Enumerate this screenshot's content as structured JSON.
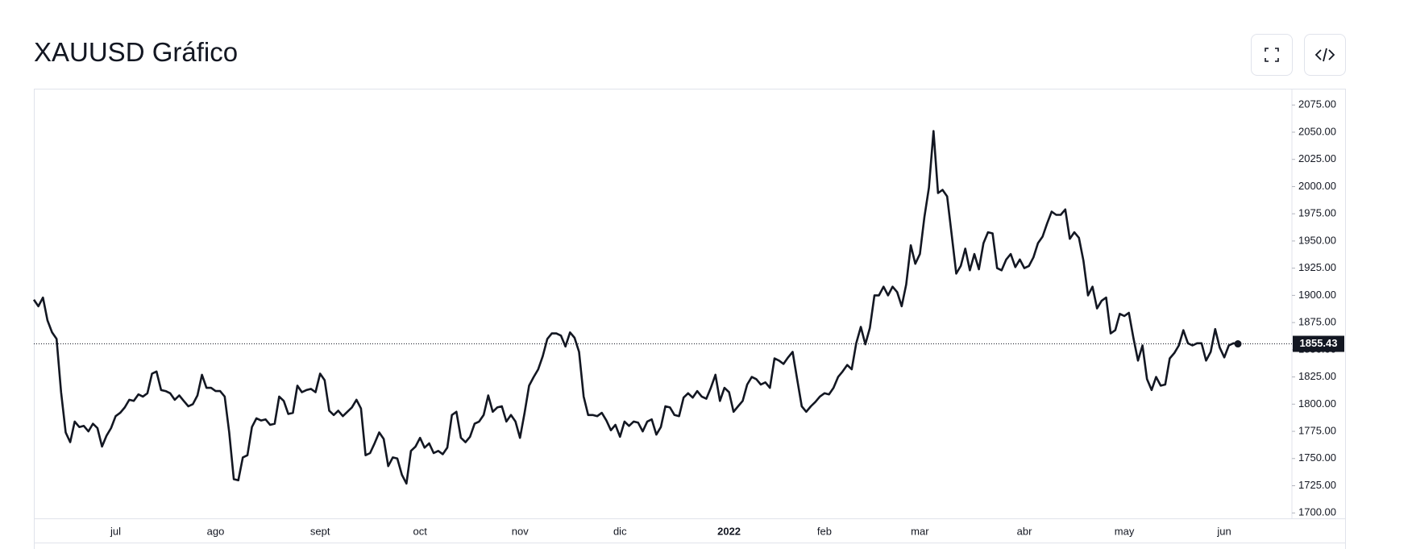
{
  "chart_data": {
    "type": "line",
    "title": "XAUUSD Gráfico",
    "color": "#131722",
    "categories": [
      null,
      null,
      null,
      null,
      null,
      null,
      null,
      null,
      null,
      null,
      null,
      null,
      null,
      null,
      null,
      null,
      null,
      null,
      "jul",
      null,
      null,
      null,
      null,
      null,
      null,
      null,
      null,
      null,
      null,
      null,
      null,
      null,
      null,
      null,
      null,
      null,
      null,
      null,
      null,
      null,
      "ago",
      null,
      null,
      null,
      null,
      null,
      null,
      null,
      null,
      null,
      null,
      null,
      null,
      null,
      null,
      null,
      null,
      null,
      null,
      null,
      null,
      null,
      null,
      "sept",
      null,
      null,
      null,
      null,
      null,
      null,
      null,
      null,
      null,
      null,
      null,
      null,
      null,
      null,
      null,
      null,
      null,
      null,
      null,
      null,
      null,
      "oct",
      null,
      null,
      null,
      null,
      null,
      null,
      null,
      null,
      null,
      null,
      null,
      null,
      null,
      null,
      null,
      null,
      null,
      null,
      null,
      null,
      null,
      "nov",
      null,
      null,
      null,
      null,
      null,
      null,
      null,
      null,
      null,
      null,
      null,
      null,
      null,
      null,
      null,
      null,
      null,
      null,
      null,
      null,
      null,
      "dic",
      null,
      null,
      null,
      null,
      null,
      null,
      null,
      null,
      null,
      null,
      null,
      null,
      null,
      null,
      null,
      null,
      null,
      null,
      null,
      null,
      null,
      null,
      null,
      "2022",
      null,
      null,
      null,
      null,
      null,
      null,
      null,
      null,
      null,
      null,
      null,
      null,
      null,
      null,
      null,
      null,
      null,
      null,
      null,
      null,
      "feb",
      null,
      null,
      null,
      null,
      null,
      null,
      null,
      null,
      null,
      null,
      null,
      null,
      null,
      null,
      null,
      null,
      null,
      null,
      null,
      null,
      "mar",
      null,
      null,
      null,
      null,
      null,
      null,
      null,
      null,
      null,
      null,
      null,
      null,
      null,
      null,
      null,
      null,
      null,
      null,
      null,
      null,
      null,
      null,
      "abr",
      null,
      null,
      null,
      null,
      null,
      null,
      null,
      null,
      null,
      null,
      null,
      null,
      null,
      null,
      null,
      null,
      null,
      null,
      null,
      null,
      null,
      "may",
      null,
      null,
      null,
      null,
      null,
      null,
      null,
      null,
      null,
      null,
      null,
      null,
      null,
      null,
      null,
      null,
      null,
      null,
      null,
      null,
      null,
      "jun",
      null,
      null,
      null
    ],
    "values": [
      1896,
      1890,
      1898,
      1877,
      1866,
      1860,
      1811,
      1774,
      1765,
      1784,
      1779,
      1780,
      1775,
      1782,
      1778,
      1761,
      1771,
      1778,
      1789,
      1792,
      1797,
      1804,
      1803,
      1809,
      1807,
      1810,
      1828,
      1830,
      1813,
      1812,
      1810,
      1804,
      1808,
      1803,
      1798,
      1800,
      1808,
      1827,
      1815,
      1815,
      1812,
      1812,
      1807,
      1774,
      1731,
      1730,
      1751,
      1753,
      1779,
      1787,
      1785,
      1786,
      1781,
      1782,
      1807,
      1803,
      1791,
      1792,
      1817,
      1811,
      1813,
      1814,
      1811,
      1828,
      1822,
      1794,
      1790,
      1794,
      1789,
      1793,
      1797,
      1804,
      1796,
      1753,
      1755,
      1764,
      1774,
      1768,
      1743,
      1751,
      1750,
      1735,
      1727,
      1757,
      1761,
      1769,
      1760,
      1764,
      1755,
      1757,
      1754,
      1760,
      1790,
      1793,
      1769,
      1765,
      1770,
      1782,
      1784,
      1790,
      1808,
      1793,
      1797,
      1798,
      1784,
      1790,
      1784,
      1769,
      1792,
      1817,
      1825,
      1832,
      1844,
      1860,
      1865,
      1865,
      1863,
      1853,
      1866,
      1861,
      1848,
      1807,
      1790,
      1790,
      1789,
      1792,
      1785,
      1776,
      1781,
      1770,
      1784,
      1780,
      1784,
      1783,
      1775,
      1784,
      1786,
      1772,
      1779,
      1798,
      1797,
      1790,
      1789,
      1806,
      1810,
      1806,
      1812,
      1807,
      1805,
      1815,
      1827,
      1803,
      1815,
      1811,
      1793,
      1798,
      1803,
      1818,
      1825,
      1823,
      1818,
      1820,
      1815,
      1842,
      1840,
      1837,
      1843,
      1848,
      1823,
      1798,
      1793,
      1798,
      1802,
      1807,
      1810,
      1809,
      1815,
      1825,
      1830,
      1836,
      1832,
      1856,
      1871,
      1855,
      1870,
      1900,
      1900,
      1908,
      1900,
      1908,
      1903,
      1890,
      1910,
      1946,
      1929,
      1938,
      1972,
      1999,
      2051,
      1994,
      1997,
      1991,
      1956,
      1920,
      1927,
      1943,
      1923,
      1938,
      1924,
      1948,
      1958,
      1957,
      1925,
      1923,
      1933,
      1938,
      1926,
      1933,
      1925,
      1927,
      1935,
      1948,
      1954,
      1966,
      1977,
      1974,
      1974,
      1979,
      1952,
      1958,
      1953,
      1932,
      1900,
      1908,
      1888,
      1895,
      1898,
      1865,
      1868,
      1883,
      1881,
      1884,
      1861,
      1840,
      1854,
      1823,
      1813,
      1825,
      1817,
      1818,
      1842,
      1847,
      1854,
      1868,
      1856,
      1854,
      1856,
      1856,
      1840,
      1848,
      1869,
      1852,
      1843,
      1854,
      1856,
      1855.43
    ],
    "ylim": [
      1695,
      2090
    ],
    "yticks": [
      {
        "value": 1700,
        "label": "1700.00"
      },
      {
        "value": 1725,
        "label": "1725.00"
      },
      {
        "value": 1750,
        "label": "1750.00"
      },
      {
        "value": 1775,
        "label": "1775.00"
      },
      {
        "value": 1800,
        "label": "1800.00"
      },
      {
        "value": 1825,
        "label": "1825.00"
      },
      {
        "value": 1850,
        "label": "1850.00"
      },
      {
        "value": 1875,
        "label": "1875.00"
      },
      {
        "value": 1900,
        "label": "1900.00"
      },
      {
        "value": 1925,
        "label": "1925.00"
      },
      {
        "value": 1950,
        "label": "1950.00"
      },
      {
        "value": 1975,
        "label": "1975.00"
      },
      {
        "value": 2000,
        "label": "2000.00"
      },
      {
        "value": 2025,
        "label": "2025.00"
      },
      {
        "value": 2050,
        "label": "2050.00"
      },
      {
        "value": 2075,
        "label": "2075.00"
      }
    ],
    "grid": false
  }
}
